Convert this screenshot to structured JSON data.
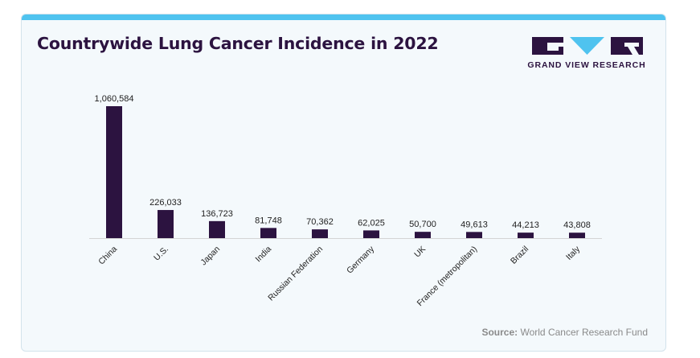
{
  "header": {
    "title": "Countrywide Lung Cancer Incidence in 2022"
  },
  "logo": {
    "text": "GRAND VIEW RESEARCH"
  },
  "source": {
    "label": "Source:",
    "text": "World Cancer Research Fund"
  },
  "colors": {
    "bar": "#2c1340",
    "accent": "#4fc3ef",
    "background": "#f4f9fc"
  },
  "chart_data": {
    "type": "bar",
    "title": "Countrywide Lung Cancer Incidence in 2022",
    "categories": [
      "China",
      "U.S.",
      "Japan",
      "India",
      "Russian Federation",
      "Germany",
      "UK",
      "France (metropolitan)",
      "Brazil",
      "Italy"
    ],
    "values": [
      1060584,
      226033,
      136723,
      81748,
      70362,
      62025,
      50700,
      49613,
      44213,
      43808
    ],
    "value_labels": [
      "1,060,584",
      "226,033",
      "136,723",
      "81,748",
      "70,362",
      "62,025",
      "50,700",
      "49,613",
      "44,213",
      "43,808"
    ],
    "xlabel": "",
    "ylabel": "",
    "ylim": [
      0,
      1060584
    ],
    "grid": false,
    "legend": "none"
  }
}
